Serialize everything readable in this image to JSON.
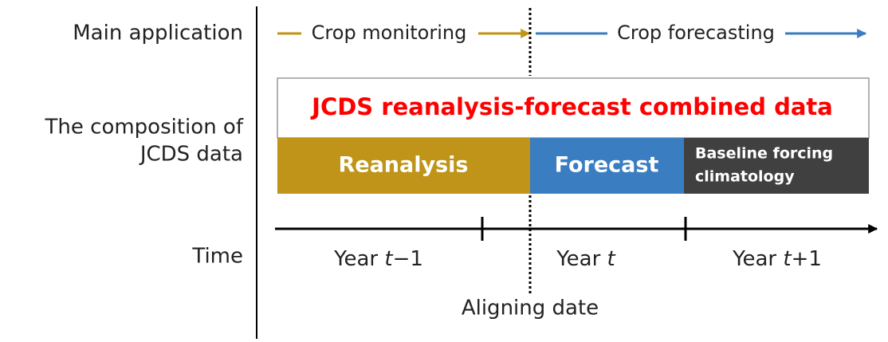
{
  "row_labels": {
    "main_application": "Main application",
    "composition": [
      "The composition of",
      "JCDS data"
    ],
    "time": "Time"
  },
  "applications": {
    "monitoring": "Crop monitoring",
    "forecasting": "Crop forecasting"
  },
  "combined_title": "JCDS reanalysis-forecast combined data",
  "segments": {
    "reanalysis": "Reanalysis",
    "forecast": "Forecast",
    "baseline": [
      "Baseline forcing",
      "climatology"
    ]
  },
  "years": [
    [
      "Year ",
      "t",
      "−1"
    ],
    [
      "Year ",
      "t",
      ""
    ],
    [
      "Year ",
      "t",
      "+1"
    ]
  ],
  "aligning_date": "Aligning date"
}
